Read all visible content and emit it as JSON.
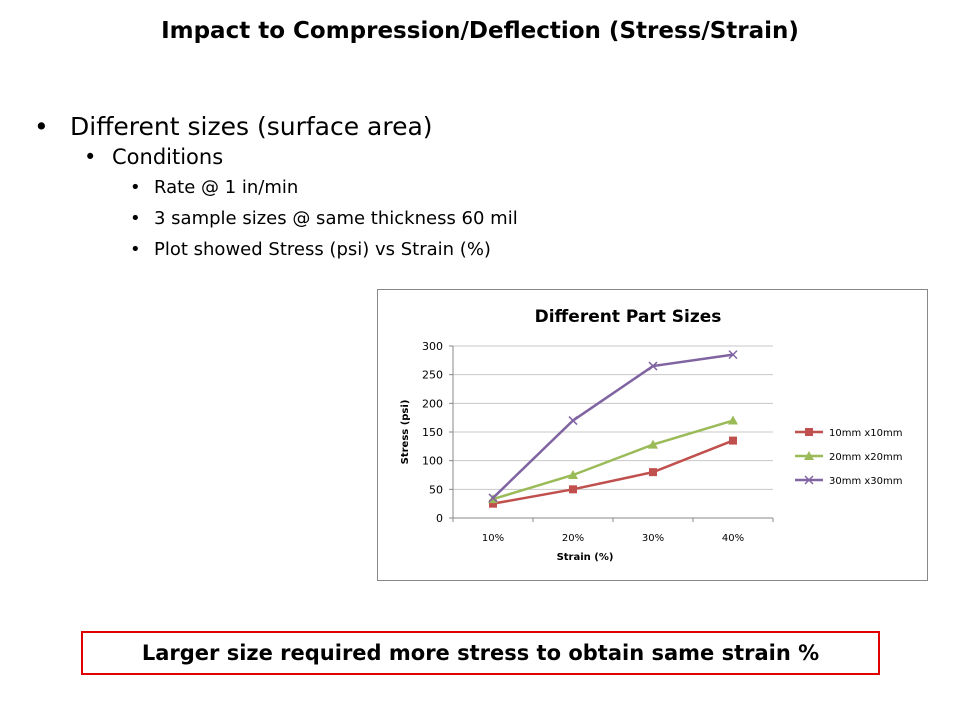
{
  "title": "Impact to Compression/Deflection (Stress/Strain)",
  "bullets": {
    "l1": "Different sizes (surface area)",
    "l2": "Conditions",
    "l3": [
      "Rate @ 1 in/min",
      "3 sample sizes @ same thickness 60 mil",
      "Plot showed Stress (psi) vs Strain (%)"
    ]
  },
  "callout": "Larger size required more stress to obtain same strain %",
  "chart_data": {
    "type": "line",
    "title": "Different Part Sizes",
    "xlabel": "Strain (%)",
    "ylabel": "Stress (psi)",
    "categories": [
      "10%",
      "20%",
      "30%",
      "40%"
    ],
    "ylim": [
      0,
      300
    ],
    "yticks": [
      "0",
      "50",
      "100",
      "150",
      "200",
      "250",
      "300"
    ],
    "grid": true,
    "legend": "right",
    "series": [
      {
        "name": "10mm x10mm",
        "values": [
          25,
          50,
          80,
          135
        ],
        "color": "#c0504d",
        "marker": "square"
      },
      {
        "name": "20mm x20mm",
        "values": [
          33,
          75,
          128,
          170
        ],
        "color": "#9bbb59",
        "marker": "triangle"
      },
      {
        "name": "30mm x30mm",
        "values": [
          35,
          170,
          265,
          285
        ],
        "color": "#8064a2",
        "marker": "x"
      }
    ]
  }
}
